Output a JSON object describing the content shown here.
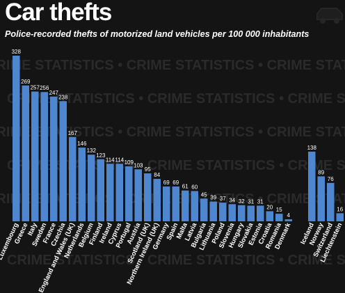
{
  "header": {
    "title": "Car thefts",
    "subtitle": "Police-recorded thefts of motorized land vehicles per 100 000 inhabitants"
  },
  "watermark": "CRIME STATISTICS •",
  "colors": {
    "background": "#141414",
    "bar": "#4f86d0",
    "text": "#ffffff",
    "watermark": "#2a2a2a"
  },
  "icons": {
    "corner": "car-icon"
  },
  "chart_data": {
    "type": "bar",
    "title": "Car thefts",
    "subtitle": "Police-recorded thefts of motorized land vehicles per 100 000 inhabitants",
    "xlabel": "",
    "ylabel": "",
    "ylim": [
      0,
      328
    ],
    "grid": false,
    "legend": "none",
    "groups": [
      {
        "categories": [
          "Luxembourg",
          "Greece",
          "Italy",
          "Sweden",
          "France",
          "Czechia",
          "England and Wales (UK)",
          "Netherlands",
          "Belgium",
          "Finland",
          "Ireland",
          "Cyprus",
          "Portugal",
          "Austria",
          "Scotland (UK)",
          "Northern Ireland (UK)",
          "Germany",
          "Spain",
          "Malta",
          "Latvia",
          "Bulgaria",
          "Lithuania",
          "Poland",
          "Slovenia",
          "Hungary",
          "Slovakia",
          "Estonia",
          "Croatia",
          "Romania",
          "Denmark"
        ],
        "values": [
          328,
          269,
          257,
          256,
          247,
          238,
          167,
          146,
          132,
          123,
          114,
          114,
          109,
          103,
          95,
          84,
          69,
          69,
          61,
          60,
          45,
          39,
          37,
          34,
          32,
          31,
          31,
          20,
          15,
          4
        ]
      },
      {
        "categories": [
          "Iceland",
          "Norway",
          "Switzerland",
          "Liechtenstein"
        ],
        "values": [
          138,
          89,
          76,
          16
        ]
      }
    ]
  }
}
